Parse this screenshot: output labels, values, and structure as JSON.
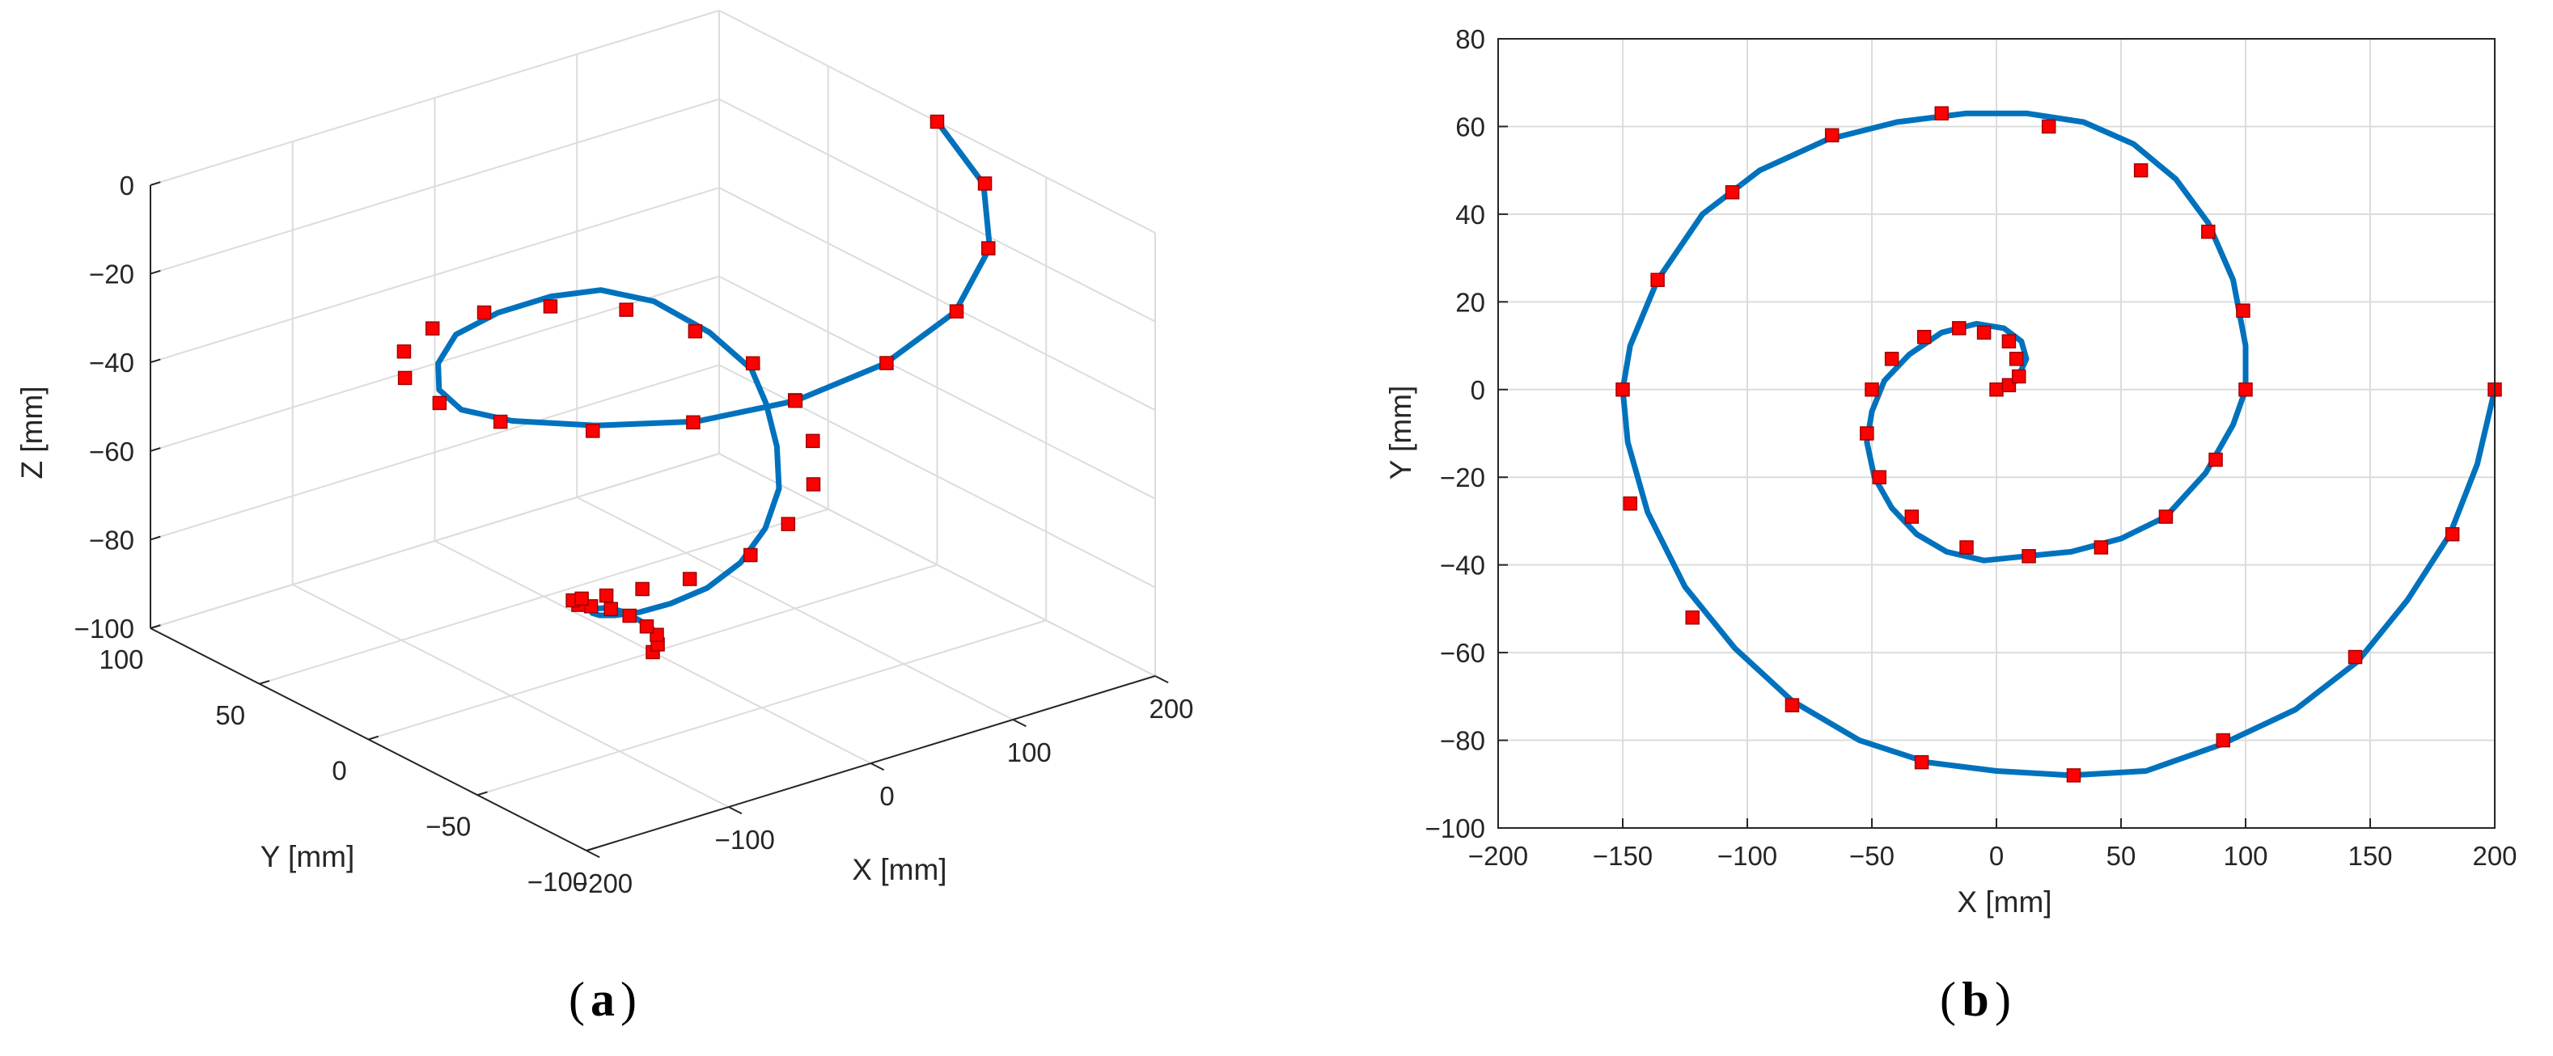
{
  "panels": [
    {
      "label": "a"
    },
    {
      "label": "b"
    }
  ],
  "colors": {
    "curve": "#0072BD",
    "marker": "#FF0000",
    "axis": "#262626",
    "grid": "#DCDCDC"
  },
  "chart_data": [
    {
      "type": "line3d",
      "panel": "a",
      "title": "",
      "xlabel": "X [mm]",
      "ylabel": "Y [mm]",
      "zlabel": "Z [mm]",
      "xlim": [
        -200,
        200
      ],
      "ylim": [
        -100,
        100
      ],
      "zlim": [
        -100,
        0
      ],
      "xticks": [
        -200,
        -100,
        0,
        100,
        200
      ],
      "yticks": [
        -100,
        -50,
        0,
        50,
        100
      ],
      "zticks": [
        -100,
        -80,
        -60,
        -40,
        -20,
        0
      ],
      "xtick_labels": [
        "−200",
        "−100",
        "0",
        "100",
        "200"
      ],
      "ytick_labels": [
        "−100",
        "−50",
        "0",
        "50",
        "100"
      ],
      "ztick_labels": [
        "−100",
        "−80",
        "−60",
        "−40",
        "−20",
        "0"
      ],
      "grid": true,
      "curve": {
        "description": "helical spiral rising from center (0,0,-100) to (200,0,0)",
        "x": [
          0,
          8,
          12,
          10,
          3,
          -8,
          -22,
          -35,
          -45,
          -50,
          -48,
          -38,
          -20,
          5,
          30,
          55,
          75,
          92,
          100,
          98,
          85,
          60,
          25,
          -20,
          -65,
          -105,
          -135,
          -150,
          -145,
          -120,
          -80,
          -30,
          30,
          90,
          145,
          182,
          200
        ],
        "y": [
          0,
          2,
          8,
          12,
          15,
          15,
          12,
          5,
          -5,
          -15,
          -25,
          -33,
          -38,
          -37,
          -32,
          -22,
          -8,
          8,
          20,
          38,
          55,
          63,
          63,
          58,
          48,
          30,
          10,
          -10,
          -30,
          -52,
          -72,
          -85,
          -87,
          -80,
          -60,
          -33,
          0
        ],
        "z": [
          -100,
          -99,
          -98,
          -97,
          -95,
          -93,
          -91,
          -89,
          -86,
          -83,
          -80,
          -77,
          -74,
          -71,
          -67,
          -63,
          -59,
          -55,
          -51,
          -47,
          -43,
          -40,
          -38,
          -36,
          -34,
          -32,
          -30,
          -28,
          -26,
          -24,
          -22,
          -19,
          -16,
          -12,
          -8,
          -4,
          0
        ]
      },
      "markers": {
        "x": [
          0,
          5,
          9,
          8,
          2,
          -8,
          -22,
          -34,
          -44,
          -50,
          -48,
          -38,
          -20,
          12,
          40,
          70,
          88,
          100,
          98,
          85,
          58,
          20,
          -22,
          -66,
          -106,
          -136,
          -150,
          -147,
          -122,
          -82,
          -30,
          31,
          91,
          144,
          183,
          200
        ],
        "y": [
          0,
          1,
          4,
          8,
          12,
          14,
          14,
          12,
          8,
          0,
          -10,
          -20,
          -30,
          -37,
          -36,
          -28,
          -16,
          0,
          18,
          36,
          50,
          60,
          63,
          58,
          45,
          25,
          0,
          -26,
          -52,
          -72,
          -85,
          -87,
          -80,
          -60,
          -33,
          0
        ],
        "z": [
          -100,
          -99,
          -98,
          -97,
          -95,
          -93,
          -91,
          -89,
          -86,
          -83,
          -80,
          -77,
          -74,
          -70,
          -66,
          -62,
          -57,
          -53,
          -49,
          -45,
          -41,
          -39,
          -37,
          -35,
          -33,
          -31,
          -29,
          -27,
          -25,
          -22,
          -19,
          -16,
          -12,
          -8,
          -4,
          0
        ]
      }
    },
    {
      "type": "line",
      "panel": "b",
      "title": "",
      "xlabel": "X [mm]",
      "ylabel": "Y [mm]",
      "xlim": [
        -200,
        200
      ],
      "ylim": [
        -100,
        80
      ],
      "xticks": [
        -200,
        -150,
        -100,
        -50,
        0,
        50,
        100,
        150,
        200
      ],
      "yticks": [
        -100,
        -80,
        -60,
        -40,
        -20,
        0,
        20,
        40,
        60,
        80
      ],
      "xtick_labels": [
        "−200",
        "−150",
        "−100",
        "−50",
        "0",
        "50",
        "100",
        "150",
        "200"
      ],
      "ytick_labels": [
        "−100",
        "−80",
        "−60",
        "−40",
        "−20",
        "0",
        "20",
        "40",
        "60",
        "80"
      ],
      "grid": true,
      "curve": {
        "x": [
          0,
          8,
          12,
          10,
          3,
          -8,
          -22,
          -35,
          -45,
          -50,
          -52,
          -49,
          -42,
          -32,
          -20,
          -5,
          12,
          30,
          50,
          68,
          84,
          95,
          100,
          100,
          95,
          85,
          72,
          55,
          35,
          12,
          -12,
          -40,
          -68,
          -95,
          -118,
          -136,
          -147,
          -150,
          -148,
          -140,
          -125,
          -105,
          -82,
          -55,
          -28,
          0,
          30,
          60,
          90,
          120,
          145,
          165,
          182,
          193,
          200
        ],
        "y": [
          0,
          2,
          7,
          11,
          14,
          15,
          13,
          8,
          2,
          -5,
          -12,
          -20,
          -27,
          -33,
          -37,
          -39,
          -38,
          -37,
          -34,
          -29,
          -19,
          -8,
          0,
          10,
          25,
          38,
          48,
          56,
          61,
          63,
          63,
          61,
          57,
          50,
          40,
          25,
          10,
          0,
          -12,
          -28,
          -45,
          -59,
          -71,
          -80,
          -85,
          -87,
          -88,
          -87,
          -81,
          -73,
          -62,
          -48,
          -33,
          -17,
          0
        ]
      },
      "markers": {
        "x": [
          0,
          5,
          9,
          8,
          5,
          -5,
          -15,
          -29,
          -42,
          -50,
          -52,
          -47,
          -34,
          -12,
          13,
          42,
          68,
          88,
          100,
          99,
          85,
          58,
          21,
          -22,
          -66,
          -106,
          -136,
          -150,
          -147,
          -122,
          -82,
          -30,
          31,
          91,
          144,
          183,
          200
        ],
        "y": [
          0,
          1,
          3,
          7,
          11,
          13,
          14,
          12,
          7,
          0,
          -10,
          -20,
          -29,
          -36,
          -38,
          -36,
          -29,
          -16,
          0,
          18,
          36,
          50,
          60,
          63,
          58,
          45,
          25,
          0,
          -26,
          -52,
          -72,
          -85,
          -88,
          -80,
          -61,
          -33,
          0
        ]
      }
    }
  ]
}
